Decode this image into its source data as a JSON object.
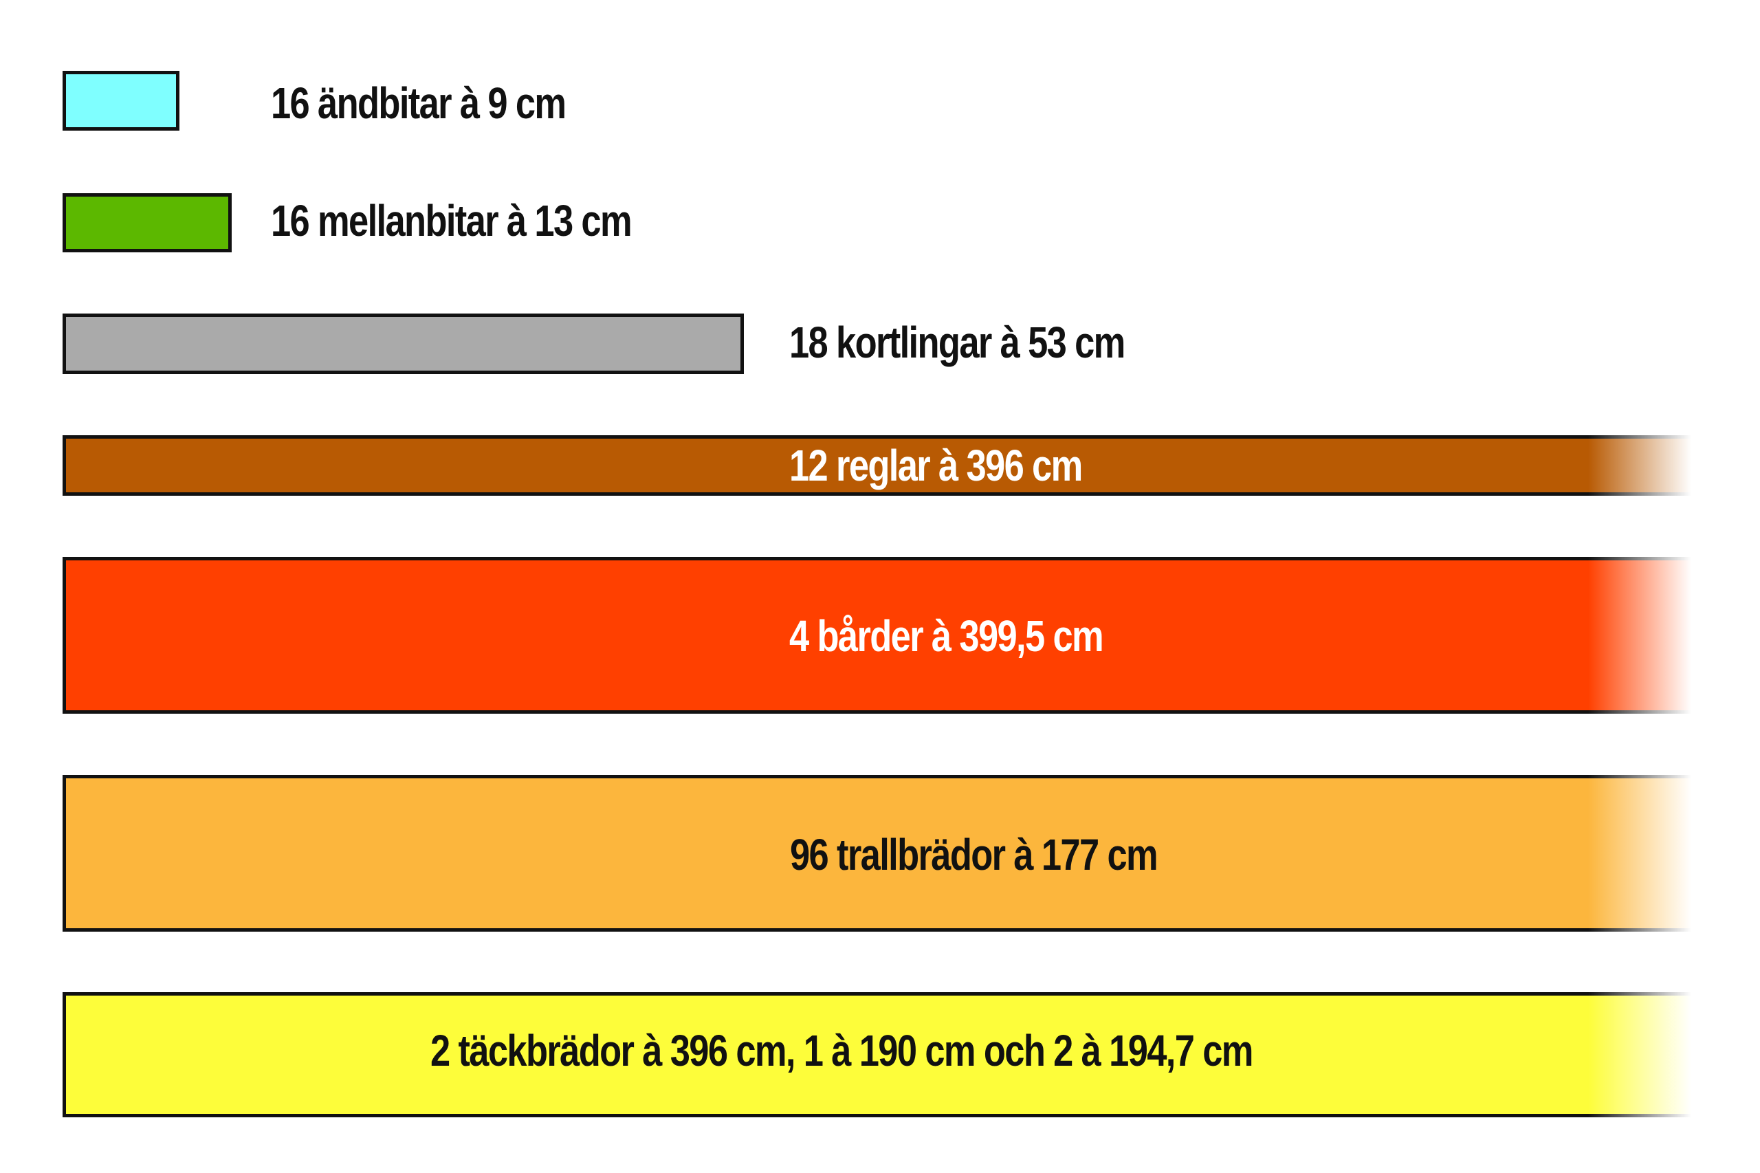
{
  "pieces": [
    {
      "label": "16 ändbitar à 9 cm",
      "color": "#7fffff"
    },
    {
      "label": "16 mellanbitar à 13 cm",
      "color": "#5cb800"
    },
    {
      "label": "18 kortlingar à 53 cm",
      "color": "#aaaaaa"
    },
    {
      "label": "12 reglar à 396 cm",
      "color": "#b85a03"
    },
    {
      "label": "4 bårder à 399,5 cm",
      "color": "#ff4000"
    },
    {
      "label": "96 trallbrädor à 177 cm",
      "color": "#fcb63d"
    },
    {
      "label": "2 täckbrädor à 396 cm, 1 à 190 cm och 2 à 194,7 cm",
      "color": "#fdfd3a"
    }
  ]
}
